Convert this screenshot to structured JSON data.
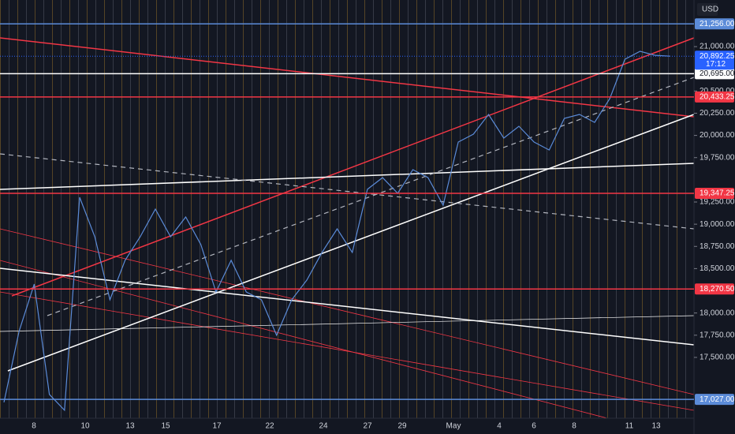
{
  "chart_data": {
    "type": "line",
    "currency": "USD",
    "color": "#5b8bd8",
    "values": [
      16994,
      17794,
      18326,
      17083,
      16905,
      19303,
      18859,
      18149,
      18593,
      18859,
      19170,
      18859,
      19081,
      18770,
      18237,
      18593,
      18237,
      18149,
      17749,
      18149,
      18371,
      18682,
      18948,
      18682,
      19393,
      19525,
      19348,
      19614,
      19525,
      19214,
      19925,
      20014,
      20236,
      19970,
      20103,
      19925,
      19836,
      20192,
      20236,
      20147,
      20414,
      20858,
      20947,
      20902,
      20892
    ],
    "x_labels": [
      "8",
      "10",
      "13",
      "15",
      "17",
      "22",
      "24",
      "27",
      "29",
      "May",
      "4",
      "6",
      "8",
      "11",
      "13"
    ],
    "ylim": [
      16815,
      21525
    ],
    "yticks": [
      {
        "value": 17500,
        "label": "17,500.00"
      },
      {
        "value": 17750,
        "label": "17,750.00"
      },
      {
        "value": 18000,
        "label": "18,000.00"
      },
      {
        "value": 18500,
        "label": "18,500.00"
      },
      {
        "value": 18750,
        "label": "18,750.00"
      },
      {
        "value": 19000,
        "label": "19,000.00"
      },
      {
        "value": 19250,
        "label": "19,250.00"
      },
      {
        "value": 19750,
        "label": "19,750.00"
      },
      {
        "value": 20000,
        "label": "20,000.00"
      },
      {
        "value": 20250,
        "label": "20,250.00"
      },
      {
        "value": 20500,
        "label": "20,500.00"
      },
      {
        "value": 21000,
        "label": "21,000.00"
      }
    ],
    "levels": [
      {
        "value": 21256,
        "label": "21,256.00",
        "color": "#5b8bd8"
      },
      {
        "value": 20695,
        "label": "20,695.00",
        "color": "#ffffff"
      },
      {
        "value": 20433.25,
        "label": "20,433.25",
        "color": "#f23645"
      },
      {
        "value": 19347.25,
        "label": "19,347.25",
        "color": "#f23645"
      },
      {
        "value": 18270.5,
        "label": "18,270.50",
        "color": "#f23645"
      },
      {
        "value": 17027,
        "label": "17,027.00",
        "color": "#5b8bd8"
      }
    ],
    "current": {
      "value": 20892.25,
      "label": "20,892.25",
      "timer": "17:12",
      "color": "#2962ff"
    }
  }
}
